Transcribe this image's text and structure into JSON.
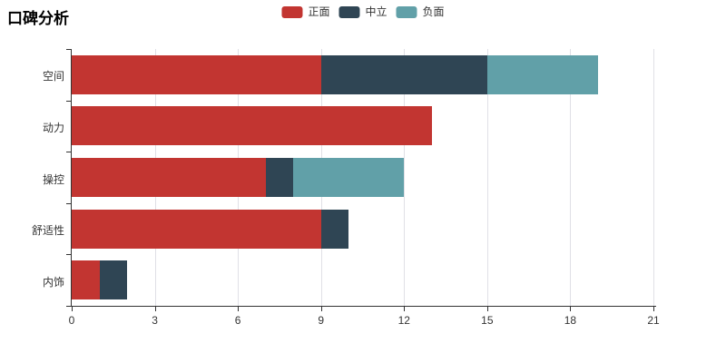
{
  "title": "口碑分析",
  "legend": {
    "items": [
      {
        "label": "正面",
        "color": "#c23531"
      },
      {
        "label": "中立",
        "color": "#2f4554"
      },
      {
        "label": "负面",
        "color": "#61a0a8"
      }
    ]
  },
  "colors": {
    "positive": "#c23531",
    "neutral": "#2f4554",
    "negative": "#61a0a8",
    "axis": "#333333",
    "gridline": "#e0e0e6",
    "label": "#333333",
    "title": "#000000"
  },
  "chart_data": {
    "type": "bar",
    "orientation": "horizontal",
    "stacked": true,
    "title": "口碑分析",
    "categories": [
      "空间",
      "动力",
      "操控",
      "舒适性",
      "内饰"
    ],
    "series": [
      {
        "name": "正面",
        "color": "#c23531",
        "values": [
          9,
          13,
          7,
          9,
          1
        ]
      },
      {
        "name": "中立",
        "color": "#2f4554",
        "values": [
          6,
          0,
          1,
          1,
          1
        ]
      },
      {
        "name": "负面",
        "color": "#61a0a8",
        "values": [
          4,
          0,
          4,
          0,
          0
        ]
      }
    ],
    "totals": [
      19,
      13,
      12,
      10,
      2
    ],
    "xlabel": "",
    "ylabel": "",
    "xlim": [
      0,
      21
    ],
    "x_ticks": [
      0,
      3,
      6,
      9,
      12,
      15,
      18,
      21
    ],
    "grid": true,
    "legend_position": "top-center"
  }
}
